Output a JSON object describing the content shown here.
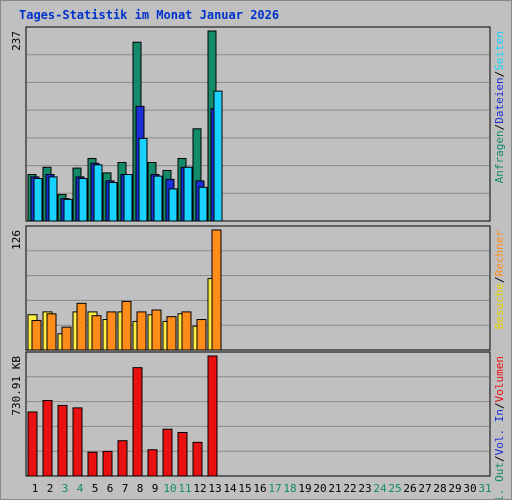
{
  "title": "Tages-Statistik im Monat Januar 2026",
  "colors": {
    "background": "#c0c0c0",
    "title": "#0033cc",
    "hits": "#138a6a",
    "files": "#1a2fd6",
    "pages": "#1ad2ff",
    "visits": "#ffee44",
    "sites": "#ff8c1a",
    "kbytes": "#e81010",
    "weekend_day": "#138a6a"
  },
  "panels": {
    "top": {
      "max_label": "237",
      "legend": [
        {
          "text": "Anfragen",
          "color": "#138a6a"
        },
        {
          "text": "/",
          "color": "#000000"
        },
        {
          "text": "Dateien",
          "color": "#1a2fd6"
        },
        {
          "text": "/",
          "color": "#000000"
        },
        {
          "text": "Seiten",
          "color": "#1ad2ff"
        }
      ]
    },
    "middle": {
      "max_label": "126",
      "legend": [
        {
          "text": "Besuche",
          "color": "#e6d600"
        },
        {
          "text": "/",
          "color": "#000000"
        },
        {
          "text": "Rechner",
          "color": "#ff8c1a"
        }
      ]
    },
    "bottom": {
      "max_label": "730.91 KB",
      "legend": [
        {
          "text": "Vol. Out",
          "color": "#138a6a"
        },
        {
          "text": "/",
          "color": "#000000"
        },
        {
          "text": "Vol. In",
          "color": "#1a2fd6"
        },
        {
          "text": "/",
          "color": "#000000"
        },
        {
          "text": "Volumen",
          "color": "#e81010"
        }
      ]
    }
  },
  "chart_data": {
    "type": "bar",
    "title": "Tages-Statistik im Monat Januar 2026",
    "categories": [
      "1",
      "2",
      "3",
      "4",
      "5",
      "6",
      "7",
      "8",
      "9",
      "10",
      "11",
      "12",
      "13",
      "14",
      "15",
      "16",
      "17",
      "18",
      "19",
      "20",
      "21",
      "22",
      "23",
      "24",
      "25",
      "26",
      "27",
      "28",
      "29",
      "30",
      "31"
    ],
    "weekend_days": [
      "3",
      "4",
      "10",
      "11",
      "17",
      "18",
      "24",
      "25",
      "31"
    ],
    "panels": [
      {
        "max": 237,
        "series": [
          {
            "name": "Anfragen",
            "values": [
              58,
              67,
              33,
              66,
              78,
              60,
              73,
              223,
              73,
              63,
              78,
              115,
              237,
              0,
              0,
              0,
              0,
              0,
              0,
              0,
              0,
              0,
              0,
              0,
              0,
              0,
              0,
              0,
              0,
              0,
              0
            ]
          },
          {
            "name": "Dateien",
            "values": [
              55,
              58,
              28,
              55,
              72,
              50,
              58,
              143,
              58,
              52,
              67,
              50,
              140,
              0,
              0,
              0,
              0,
              0,
              0,
              0,
              0,
              0,
              0,
              0,
              0,
              0,
              0,
              0,
              0,
              0,
              0
            ]
          },
          {
            "name": "Seiten",
            "values": [
              53,
              55,
              27,
              53,
              70,
              48,
              58,
              103,
              56,
              40,
              67,
              42,
              162,
              0,
              0,
              0,
              0,
              0,
              0,
              0,
              0,
              0,
              0,
              0,
              0,
              0,
              0,
              0,
              0,
              0,
              0
            ]
          }
        ]
      },
      {
        "max": 126,
        "series": [
          {
            "name": "Besuche",
            "values": [
              37,
              40,
              17,
              40,
              40,
              32,
              40,
              30,
              37,
              30,
              38,
              25,
              75,
              0,
              0,
              0,
              0,
              0,
              0,
              0,
              0,
              0,
              0,
              0,
              0,
              0,
              0,
              0,
              0,
              0,
              0
            ]
          },
          {
            "name": "Rechner",
            "values": [
              31,
              38,
              24,
              49,
              36,
              40,
              51,
              40,
              42,
              35,
              40,
              32,
              126,
              0,
              0,
              0,
              0,
              0,
              0,
              0,
              0,
              0,
              0,
              0,
              0,
              0,
              0,
              0,
              0,
              0,
              0
            ]
          }
        ]
      },
      {
        "max": 730.91,
        "unit": "KB",
        "series": [
          {
            "name": "Volumen",
            "values": [
              390,
              460,
              430,
              415,
              145,
              150,
              215,
              660,
              160,
              285,
              265,
              205,
              730.91,
              0,
              0,
              0,
              0,
              0,
              0,
              0,
              0,
              0,
              0,
              0,
              0,
              0,
              0,
              0,
              0,
              0,
              0
            ]
          }
        ]
      }
    ]
  }
}
